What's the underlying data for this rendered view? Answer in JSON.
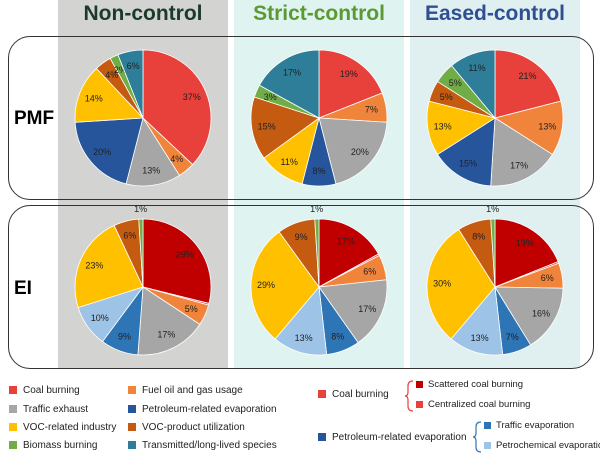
{
  "columns": {
    "non_control": {
      "title": "Non-control",
      "color": "#1a3a2a",
      "bg": "#d3d4d2"
    },
    "strict_control": {
      "title": "Strict-control",
      "color": "#5b9a32",
      "bg": "#dff3f1"
    },
    "eased_control": {
      "title": "Eased-control",
      "color": "#2e4f94",
      "bg": "#e0efef"
    }
  },
  "rows": {
    "pmf": "PMF",
    "ei": "EI"
  },
  "chart_data": [
    {
      "type": "pie",
      "method": "PMF",
      "scenario": "Non-control",
      "slices": [
        {
          "label": "Coal burning",
          "value": 37,
          "text": "37%",
          "color": "#e8403a"
        },
        {
          "label": "Fuel oil and gas usage",
          "value": 4,
          "text": "4%",
          "color": "#f0843a"
        },
        {
          "label": "Traffic exhaust",
          "value": 13,
          "text": "13%",
          "color": "#a6a6a6"
        },
        {
          "label": "Petroleum-related evaporation",
          "value": 20,
          "text": "20%",
          "color": "#27559c"
        },
        {
          "label": "VOC-related industry",
          "value": 14,
          "text": "14%",
          "color": "#ffc000"
        },
        {
          "label": "VOC-product utilization",
          "value": 4,
          "text": "4%",
          "color": "#c55a11"
        },
        {
          "label": "Biomass burning",
          "value": 2,
          "text": "2%",
          "color": "#70ad47"
        },
        {
          "label": "Transmitted/long-lived species",
          "value": 6,
          "text": "6%",
          "color": "#2e7d99"
        }
      ]
    },
    {
      "type": "pie",
      "method": "PMF",
      "scenario": "Strict-control",
      "slices": [
        {
          "label": "Coal burning",
          "value": 19,
          "text": "19%",
          "color": "#e8403a"
        },
        {
          "label": "Fuel oil and gas usage",
          "value": 7,
          "text": "7%",
          "color": "#f0843a"
        },
        {
          "label": "Traffic exhaust",
          "value": 20,
          "text": "20%",
          "color": "#a6a6a6"
        },
        {
          "label": "Petroleum-related evaporation",
          "value": 8,
          "text": "8%",
          "color": "#27559c"
        },
        {
          "label": "VOC-related industry",
          "value": 11,
          "text": "11%",
          "color": "#ffc000"
        },
        {
          "label": "VOC-product utilization",
          "value": 15,
          "text": "15%",
          "color": "#c55a11"
        },
        {
          "label": "Biomass burning",
          "value": 3,
          "text": "3%",
          "color": "#70ad47"
        },
        {
          "label": "Transmitted/long-lived species",
          "value": 17,
          "text": "17%",
          "color": "#2e7d99"
        }
      ]
    },
    {
      "type": "pie",
      "method": "PMF",
      "scenario": "Eased-control",
      "slices": [
        {
          "label": "Coal burning",
          "value": 21,
          "text": "21%",
          "color": "#e8403a"
        },
        {
          "label": "Fuel oil and gas usage",
          "value": 13,
          "text": "13%",
          "color": "#f0843a"
        },
        {
          "label": "Traffic exhaust",
          "value": 17,
          "text": "17%",
          "color": "#a6a6a6"
        },
        {
          "label": "Petroleum-related evaporation",
          "value": 15,
          "text": "15%",
          "color": "#27559c"
        },
        {
          "label": "VOC-related industry",
          "value": 13,
          "text": "13%",
          "color": "#ffc000"
        },
        {
          "label": "VOC-product utilization",
          "value": 5,
          "text": "5%",
          "color": "#c55a11"
        },
        {
          "label": "Biomass burning",
          "value": 5,
          "text": "5%",
          "color": "#70ad47"
        },
        {
          "label": "Transmitted/long-lived species",
          "value": 11,
          "text": "11%",
          "color": "#2e7d99"
        }
      ]
    },
    {
      "type": "pie",
      "method": "EI",
      "scenario": "Non-control",
      "slices": [
        {
          "label": "Scattered coal burning",
          "value": 29,
          "text": "29%",
          "color": "#c00000"
        },
        {
          "label": "Centralized coal burning",
          "value": 0.4,
          "text": "",
          "color": "#e8403a"
        },
        {
          "label": "Fuel oil and gas usage",
          "value": 5,
          "text": "5%",
          "color": "#f0843a"
        },
        {
          "label": "Traffic exhaust",
          "value": 17,
          "text": "17%",
          "color": "#a6a6a6"
        },
        {
          "label": "Traffic evaporation",
          "value": 9,
          "text": "9%",
          "color": "#2e75b6"
        },
        {
          "label": "Petrochemical evaporation",
          "value": 10,
          "text": "10%",
          "color": "#9dc3e6"
        },
        {
          "label": "VOC-related industry",
          "value": 23,
          "text": "23%",
          "color": "#ffc000"
        },
        {
          "label": "VOC-product utilization",
          "value": 6,
          "text": "6%",
          "color": "#c55a11"
        },
        {
          "label": "Biomass burning",
          "value": 1,
          "text": "1%",
          "color": "#70ad47"
        }
      ]
    },
    {
      "type": "pie",
      "method": "EI",
      "scenario": "Strict-control",
      "slices": [
        {
          "label": "Scattered coal burning",
          "value": 17,
          "text": "17%",
          "color": "#c00000"
        },
        {
          "label": "Centralized coal burning",
          "value": 0.4,
          "text": "",
          "color": "#e8403a"
        },
        {
          "label": "Fuel oil and gas usage",
          "value": 6,
          "text": "6%",
          "color": "#f0843a"
        },
        {
          "label": "Traffic exhaust",
          "value": 17,
          "text": "17%",
          "color": "#a6a6a6"
        },
        {
          "label": "Traffic evaporation",
          "value": 8,
          "text": "8%",
          "color": "#2e75b6"
        },
        {
          "label": "Petrochemical evaporation",
          "value": 13,
          "text": "13%",
          "color": "#9dc3e6"
        },
        {
          "label": "VOC-related industry",
          "value": 29,
          "text": "29%",
          "color": "#ffc000"
        },
        {
          "label": "VOC-product utilization",
          "value": 9,
          "text": "9%",
          "color": "#c55a11"
        },
        {
          "label": "Biomass burning",
          "value": 1,
          "text": "1%",
          "color": "#70ad47"
        }
      ]
    },
    {
      "type": "pie",
      "method": "EI",
      "scenario": "Eased-control",
      "slices": [
        {
          "label": "Scattered coal burning",
          "value": 19,
          "text": "19%",
          "color": "#c00000"
        },
        {
          "label": "Centralized coal burning",
          "value": 0.4,
          "text": "",
          "color": "#e8403a"
        },
        {
          "label": "Fuel oil and gas usage",
          "value": 6,
          "text": "6%",
          "color": "#f0843a"
        },
        {
          "label": "Traffic exhaust",
          "value": 16,
          "text": "16%",
          "color": "#a6a6a6"
        },
        {
          "label": "Traffic evaporation",
          "value": 7,
          "text": "7%",
          "color": "#2e75b6"
        },
        {
          "label": "Petrochemical evaporation",
          "value": 13,
          "text": "13%",
          "color": "#9dc3e6"
        },
        {
          "label": "VOC-related industry",
          "value": 30,
          "text": "30%",
          "color": "#ffc000"
        },
        {
          "label": "VOC-product utilization",
          "value": 8,
          "text": "8%",
          "color": "#c55a11"
        },
        {
          "label": "Biomass burning",
          "value": 1,
          "text": "1%",
          "color": "#70ad47"
        }
      ]
    }
  ],
  "legend": {
    "items": [
      {
        "label": "Coal burning",
        "color": "#e8403a"
      },
      {
        "label": "Fuel oil and gas usage",
        "color": "#f0843a"
      },
      {
        "label": "Traffic exhaust",
        "color": "#a6a6a6"
      },
      {
        "label": "Petroleum-related evaporation",
        "color": "#27559c"
      },
      {
        "label": "VOC-related industry",
        "color": "#ffc000"
      },
      {
        "label": "VOC-product utilization",
        "color": "#c55a11"
      },
      {
        "label": "Biomass burning",
        "color": "#70ad47"
      },
      {
        "label": "Transmitted/long-lived species",
        "color": "#2e7d99"
      }
    ],
    "coal_group": {
      "label": "Coal burning",
      "color": "#e8403a",
      "children": [
        {
          "label": "Scattered coal burning",
          "color": "#c00000"
        },
        {
          "label": "Centralized coal burning",
          "color": "#e8403a"
        }
      ]
    },
    "petro_group": {
      "label": "Petroleum-related evaporation",
      "color": "#27559c",
      "children": [
        {
          "label": "Traffic evaporation",
          "color": "#2e75b6"
        },
        {
          "label": "Petrochemical evaporation",
          "color": "#9dc3e6"
        }
      ]
    }
  }
}
